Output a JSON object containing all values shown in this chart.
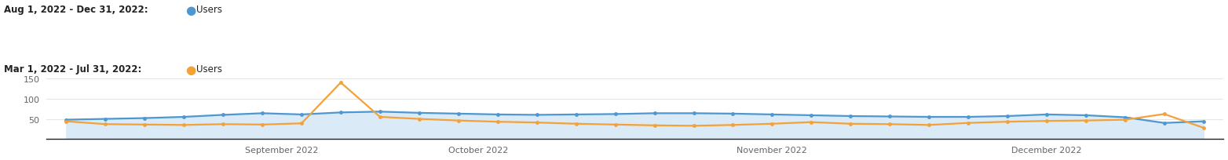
{
  "blue_values": [
    48,
    50,
    52,
    55,
    60,
    64,
    61,
    66,
    68,
    65,
    63,
    61,
    60,
    61,
    62,
    64,
    64,
    63,
    61,
    59,
    57,
    56,
    55,
    55,
    57,
    61,
    59,
    54,
    40,
    44
  ],
  "orange_values": [
    44,
    37,
    36,
    35,
    37,
    36,
    39,
    140,
    55,
    50,
    46,
    43,
    41,
    38,
    36,
    34,
    33,
    35,
    38,
    42,
    38,
    37,
    35,
    40,
    43,
    45,
    46,
    48,
    62,
    28
  ],
  "x_ticks_pos": [
    5.5,
    10.5,
    18.0,
    25.0
  ],
  "x_tick_labels": [
    "September 2022",
    "October 2022",
    "November 2022",
    "December 2022"
  ],
  "yticks": [
    50,
    100,
    150
  ],
  "ylim": [
    0,
    175
  ],
  "xlim": [
    -0.5,
    29.5
  ],
  "blue_color": "#4e97d1",
  "orange_color": "#f4a137",
  "fill_color": "#daeaf7",
  "bg_color": "#ffffff",
  "grid_color": "#e5e5e5",
  "bottom_line_color": "#222222",
  "n_points": 30,
  "legend1_date": "Aug 1, 2022 - Dec 31, 2022:",
  "legend2_date": "Mar 1, 2022 - Jul 31, 2022:",
  "legend_series": "Users"
}
